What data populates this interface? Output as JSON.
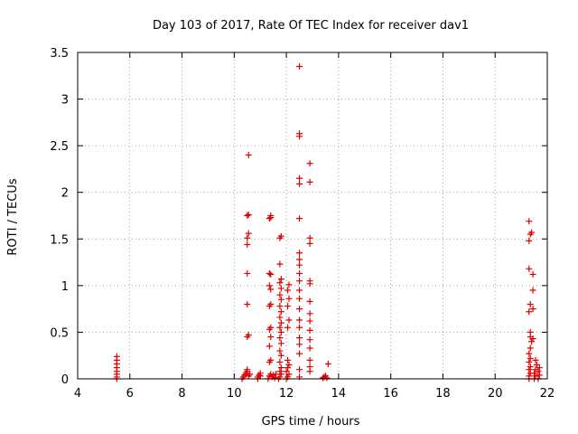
{
  "chart_data": {
    "type": "scatter",
    "title": "Day 103 of 2017, Rate Of TEC Index for receiver dav1",
    "xlabel": "GPS time / hours",
    "ylabel": "ROTI / TECUs",
    "xlim": [
      4,
      22
    ],
    "ylim": [
      0,
      3.5
    ],
    "xticks": [
      "4",
      "6",
      "8",
      "10",
      "12",
      "14",
      "16",
      "18",
      "20",
      "22"
    ],
    "yticks": [
      "0",
      "0.5",
      "1",
      "1.5",
      "2",
      "2.5",
      "3",
      "3.5"
    ],
    "grid": true,
    "marker": "+",
    "color": "#e00000",
    "series": [
      {
        "points": [
          [
            5.5,
            0.0
          ],
          [
            5.5,
            0.02
          ],
          [
            5.5,
            0.05
          ],
          [
            5.5,
            0.08
          ],
          [
            5.5,
            0.12
          ],
          [
            5.5,
            0.16
          ],
          [
            5.5,
            0.2
          ],
          [
            5.5,
            0.24
          ],
          [
            10.3,
            0.0
          ],
          [
            10.35,
            0.02
          ],
          [
            10.4,
            0.04
          ],
          [
            10.45,
            0.06
          ],
          [
            10.5,
            0.08
          ],
          [
            10.5,
            0.1
          ],
          [
            10.55,
            0.03
          ],
          [
            10.6,
            0.05
          ],
          [
            10.5,
            0.45
          ],
          [
            10.55,
            0.47
          ],
          [
            10.5,
            0.8
          ],
          [
            10.5,
            1.13
          ],
          [
            10.5,
            1.44
          ],
          [
            10.5,
            1.51
          ],
          [
            10.55,
            1.56
          ],
          [
            10.5,
            1.75
          ],
          [
            10.55,
            1.76
          ],
          [
            10.55,
            2.4
          ],
          [
            10.9,
            0.0
          ],
          [
            10.9,
            0.02
          ],
          [
            10.95,
            0.04
          ],
          [
            11.0,
            0.06
          ],
          [
            11.0,
            0.03
          ],
          [
            11.3,
            0.0
          ],
          [
            11.35,
            0.03
          ],
          [
            11.4,
            0.05
          ],
          [
            11.45,
            0.02
          ],
          [
            11.5,
            0.04
          ],
          [
            11.55,
            0.01
          ],
          [
            11.6,
            0.05
          ],
          [
            11.35,
            0.18
          ],
          [
            11.4,
            0.2
          ],
          [
            11.35,
            0.35
          ],
          [
            11.4,
            0.45
          ],
          [
            11.35,
            0.53
          ],
          [
            11.4,
            0.55
          ],
          [
            11.35,
            0.78
          ],
          [
            11.4,
            0.8
          ],
          [
            11.4,
            0.96
          ],
          [
            11.35,
            1.0
          ],
          [
            11.4,
            1.12
          ],
          [
            11.35,
            1.13
          ],
          [
            11.35,
            1.72
          ],
          [
            11.4,
            1.73
          ],
          [
            11.4,
            1.75
          ],
          [
            11.7,
            0.0
          ],
          [
            11.75,
            0.02
          ],
          [
            11.8,
            0.05
          ],
          [
            11.75,
            0.08
          ],
          [
            11.8,
            0.12
          ],
          [
            11.75,
            0.18
          ],
          [
            11.8,
            0.25
          ],
          [
            11.75,
            0.3
          ],
          [
            11.8,
            0.38
          ],
          [
            11.75,
            0.44
          ],
          [
            11.8,
            0.5
          ],
          [
            11.75,
            0.55
          ],
          [
            11.8,
            0.6
          ],
          [
            11.75,
            0.66
          ],
          [
            11.8,
            0.72
          ],
          [
            11.75,
            0.78
          ],
          [
            11.8,
            0.85
          ],
          [
            11.75,
            0.9
          ],
          [
            11.8,
            0.97
          ],
          [
            11.75,
            1.03
          ],
          [
            11.8,
            1.07
          ],
          [
            11.75,
            1.23
          ],
          [
            11.75,
            1.51
          ],
          [
            11.8,
            1.53
          ],
          [
            12.0,
            0.0
          ],
          [
            12.05,
            0.02
          ],
          [
            12.1,
            0.05
          ],
          [
            12.0,
            0.08
          ],
          [
            12.05,
            0.12
          ],
          [
            12.1,
            0.15
          ],
          [
            12.05,
            0.2
          ],
          [
            12.05,
            0.55
          ],
          [
            12.1,
            0.63
          ],
          [
            12.05,
            0.78
          ],
          [
            12.1,
            0.86
          ],
          [
            12.05,
            0.95
          ],
          [
            12.1,
            1.01
          ],
          [
            12.5,
            0.02
          ],
          [
            12.5,
            0.1
          ],
          [
            12.5,
            0.27
          ],
          [
            12.5,
            0.37
          ],
          [
            12.5,
            0.44
          ],
          [
            12.5,
            0.55
          ],
          [
            12.5,
            0.63
          ],
          [
            12.5,
            0.75
          ],
          [
            12.5,
            0.86
          ],
          [
            12.5,
            0.95
          ],
          [
            12.5,
            1.05
          ],
          [
            12.5,
            1.13
          ],
          [
            12.5,
            1.22
          ],
          [
            12.5,
            1.28
          ],
          [
            12.5,
            1.35
          ],
          [
            12.5,
            1.72
          ],
          [
            12.5,
            2.09
          ],
          [
            12.5,
            2.15
          ],
          [
            12.5,
            2.6
          ],
          [
            12.5,
            2.63
          ],
          [
            12.5,
            3.35
          ],
          [
            12.9,
            0.08
          ],
          [
            12.9,
            0.13
          ],
          [
            12.9,
            0.2
          ],
          [
            12.9,
            0.33
          ],
          [
            12.9,
            0.42
          ],
          [
            12.9,
            0.52
          ],
          [
            12.9,
            0.62
          ],
          [
            12.9,
            0.7
          ],
          [
            12.9,
            0.83
          ],
          [
            12.9,
            1.02
          ],
          [
            12.9,
            1.05
          ],
          [
            12.9,
            1.45
          ],
          [
            12.9,
            1.51
          ],
          [
            12.9,
            2.11
          ],
          [
            12.9,
            2.31
          ],
          [
            13.4,
            0.01
          ],
          [
            13.45,
            0.02
          ],
          [
            13.5,
            0.03
          ],
          [
            13.55,
            0.01
          ],
          [
            13.6,
            0.16
          ],
          [
            21.3,
            0.0
          ],
          [
            21.3,
            0.03
          ],
          [
            21.35,
            0.06
          ],
          [
            21.3,
            0.1
          ],
          [
            21.35,
            0.13
          ],
          [
            21.3,
            0.18
          ],
          [
            21.35,
            0.22
          ],
          [
            21.3,
            0.27
          ],
          [
            21.35,
            0.33
          ],
          [
            21.4,
            0.4
          ],
          [
            21.35,
            0.45
          ],
          [
            21.35,
            0.5
          ],
          [
            21.3,
            0.72
          ],
          [
            21.35,
            0.8
          ],
          [
            21.3,
            1.18
          ],
          [
            21.3,
            1.48
          ],
          [
            21.35,
            1.55
          ],
          [
            21.4,
            1.57
          ],
          [
            21.3,
            1.69
          ],
          [
            21.45,
            1.12
          ],
          [
            21.45,
            0.95
          ],
          [
            21.45,
            0.75
          ],
          [
            21.45,
            0.43
          ],
          [
            21.5,
            0.0
          ],
          [
            21.55,
            0.03
          ],
          [
            21.5,
            0.06
          ],
          [
            21.55,
            0.1
          ],
          [
            21.6,
            0.15
          ],
          [
            21.55,
            0.2
          ],
          [
            21.65,
            0.0
          ],
          [
            21.7,
            0.04
          ],
          [
            21.65,
            0.08
          ],
          [
            21.7,
            0.12
          ]
        ]
      }
    ]
  }
}
